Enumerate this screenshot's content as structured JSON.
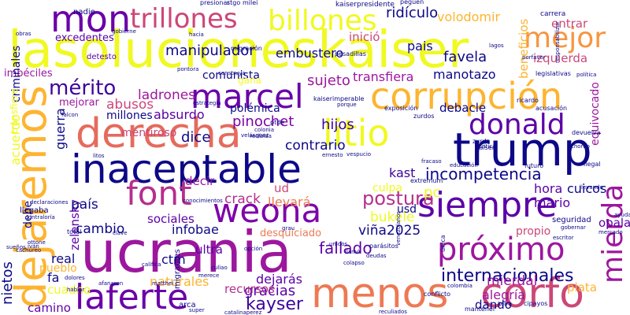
{
  "colors": {
    "background": "#ffffff",
    "palette": [
      "#0d0887",
      "#5c01a6",
      "#9c179e",
      "#cc4778",
      "#ed7953",
      "#fdb42f",
      "#f0f921"
    ]
  },
  "words": [
    {
      "text": "lasolucioneskaiser",
      "color": "#f0f921"
    },
    {
      "text": "ucrania",
      "color": "#9c179e"
    },
    {
      "text": "trump",
      "color": "#0d0887"
    },
    {
      "text": "inaceptable",
      "color": "#0d0887"
    },
    {
      "text": "derecha",
      "color": "#e56b5d"
    },
    {
      "text": "corrupción",
      "color": "#fdb42f"
    },
    {
      "text": "dejaremos",
      "color": "#fdb42f"
    },
    {
      "text": "menos",
      "color": "#ed7953"
    },
    {
      "text": "corfo",
      "color": "#cc4778"
    },
    {
      "text": "siempre",
      "color": "#5c01a6"
    },
    {
      "text": "weona",
      "color": "#7e03a8"
    },
    {
      "text": "marcel",
      "color": "#6a00a8"
    },
    {
      "text": "laferte",
      "color": "#6a00a8"
    },
    {
      "text": "próximo",
      "color": "#9c179e"
    },
    {
      "text": "billones",
      "color": "#f0f921"
    },
    {
      "text": "litio",
      "color": "#f0f921"
    },
    {
      "text": "mon",
      "color": "#6a00a8"
    },
    {
      "text": "font",
      "color": "#b52f8c"
    },
    {
      "text": "trillones",
      "color": "#cc4778"
    },
    {
      "text": "mejor",
      "color": "#f89540"
    },
    {
      "text": "mierda",
      "color": "#9c179e"
    },
    {
      "text": "donald",
      "color": "#5c01a6"
    },
    {
      "text": "internacionales",
      "color": "#0d0887"
    },
    {
      "text": "mérito",
      "color": "#3d049b"
    },
    {
      "text": "postura",
      "color": "#b52f8c"
    },
    {
      "text": "kayser",
      "color": "#3d049b"
    },
    {
      "text": "incompetencia",
      "color": "#0d0887"
    },
    {
      "text": "manipulador",
      "color": "#0d0887"
    },
    {
      "text": "pinochet",
      "color": "#7e03a8"
    },
    {
      "text": "gracias",
      "color": "#5c01a6"
    },
    {
      "text": "alegría",
      "color": "#9c179e"
    },
    {
      "text": "fallado",
      "color": "#5c01a6"
    },
    {
      "text": "ridículo",
      "color": "#0d0887"
    },
    {
      "text": "volodomir",
      "color": "#fdb42f"
    },
    {
      "text": "favela",
      "color": "#0d0887"
    },
    {
      "text": "sujeto",
      "color": "#9c179e"
    },
    {
      "text": "manotazo",
      "color": "#0d0887"
    },
    {
      "text": "transfiera",
      "color": "#9c179e"
    },
    {
      "text": "embustero",
      "color": "#0d0887"
    },
    {
      "text": "inició",
      "color": "#cc4778"
    },
    {
      "text": "pais",
      "color": "#0d0887"
    },
    {
      "text": "izquierda",
      "color": "#cc4778"
    },
    {
      "text": "beneficios",
      "color": "#fdb42f"
    },
    {
      "text": "entrar",
      "color": "#cc4778"
    },
    {
      "text": "excedentes",
      "color": "#5c01a6"
    },
    {
      "text": "ladrones",
      "color": "#9c179e"
    },
    {
      "text": "dice",
      "color": "#0d0887"
    },
    {
      "text": "abusos",
      "color": "#cc4778"
    },
    {
      "text": "absurdo",
      "color": "#5c01a6"
    },
    {
      "text": "millones",
      "color": "#0d0887"
    },
    {
      "text": "guerra",
      "color": "#0d0887"
    },
    {
      "text": "crack",
      "color": "#b52f8c"
    },
    {
      "text": "llevará",
      "color": "#ed7953"
    },
    {
      "text": "bukele",
      "color": "#f0f921"
    },
    {
      "text": "viña2025",
      "color": "#0d0887"
    },
    {
      "text": "mario",
      "color": "#5c01a6"
    },
    {
      "text": "hora",
      "color": "#5c01a6"
    },
    {
      "text": "hijos",
      "color": "#3d049b"
    },
    {
      "text": "contrario",
      "color": "#0d0887"
    },
    {
      "text": "debacle",
      "color": "#0d0887"
    },
    {
      "text": "zelensky",
      "color": "#5c01a6"
    },
    {
      "text": "mierdal",
      "color": "#9c179e"
    },
    {
      "text": "dando",
      "color": "#0d0887"
    },
    {
      "text": "plata",
      "color": "#fdb42f"
    },
    {
      "text": "nietos",
      "color": "#0d0887"
    },
    {
      "text": "cuadno",
      "color": "#f0f921"
    },
    {
      "text": "camino",
      "color": "#5c01a6"
    },
    {
      "text": "pueblo",
      "color": "#fdb42f"
    },
    {
      "text": "real",
      "color": "#0d0887"
    },
    {
      "text": "fa",
      "color": "#0d0887"
    },
    {
      "text": "naturales",
      "color": "#fdb42f"
    },
    {
      "text": "dejarás",
      "color": "#5c01a6"
    },
    {
      "text": "recursos",
      "color": "#b52f8c"
    },
    {
      "text": "ctm",
      "color": "#0d0887"
    },
    {
      "text": "ultra",
      "color": "#5c01a6"
    },
    {
      "text": "infobae",
      "color": "#0d0887"
    },
    {
      "text": "sociales",
      "color": "#5c01a6"
    },
    {
      "text": "cambio",
      "color": "#0d0887"
    },
    {
      "text": "país",
      "color": "#0d0887"
    },
    {
      "text": "debe",
      "color": "#0d0887"
    },
    {
      "text": "usd",
      "color": "#0d0887"
    },
    {
      "text": "desquiciado",
      "color": "#ed7953"
    },
    {
      "text": "pc",
      "color": "#f0f921"
    },
    {
      "text": "cuicos",
      "color": "#0d0887"
    },
    {
      "text": "opala",
      "color": "#5c01a6"
    },
    {
      "text": "propio",
      "color": "#cc4778"
    },
    {
      "text": "kast",
      "color": "#3d049b"
    },
    {
      "text": "culpa",
      "color": "#f0f921"
    },
    {
      "text": "ud",
      "color": "#cc4778"
    },
    {
      "text": "decir",
      "color": "#9c179e"
    },
    {
      "text": "mentiroso",
      "color": "#cc4778"
    },
    {
      "text": "acuerdo",
      "color": "#f0f921"
    },
    {
      "text": "polémica",
      "color": "#0d0887"
    },
    {
      "text": "comunista",
      "color": "#0d0887"
    },
    {
      "text": "gana",
      "color": "#f0f921"
    },
    {
      "text": "mejorar",
      "color": "#9c179e"
    },
    {
      "text": "imbéciles",
      "color": "#9c179e"
    },
    {
      "text": "criminales",
      "color": "#0d0887"
    },
    {
      "text": "transfiere",
      "color": "#f0f921"
    },
    {
      "text": "equivocado",
      "color": "#9c179e"
    },
    {
      "text": "detesto",
      "color": "#5c01a6"
    },
    {
      "text": "nadie",
      "color": "#0d0887"
    },
    {
      "text": "kaiserpresidente",
      "color": "#0d0887"
    },
    {
      "text": "carrera",
      "color": "#0d0887"
    },
    {
      "text": "migración",
      "color": "#0d0887"
    },
    {
      "text": "hacia",
      "color": "#0d0887"
    },
    {
      "text": "gobierne",
      "color": "#0d0887"
    },
    {
      "text": "presionar",
      "color": "#0d0887"
    },
    {
      "text": "stgo",
      "color": "#0d0887"
    },
    {
      "text": "milei",
      "color": "#0d0887"
    },
    {
      "text": "peguen",
      "color": "#0d0887"
    },
    {
      "text": "pesadillas",
      "color": "#0d0887"
    },
    {
      "text": "legislativas",
      "color": "#0d0887"
    },
    {
      "text": "kaiserimperable",
      "color": "#0d0887"
    },
    {
      "text": "acusación",
      "color": "#0d0887"
    },
    {
      "text": "política",
      "color": "#0d0887"
    },
    {
      "text": "estrategia",
      "color": "#0d0887"
    },
    {
      "text": "exposición",
      "color": "#0d0887"
    },
    {
      "text": "zurdos",
      "color": "#0d0887"
    },
    {
      "text": "recibida",
      "color": "#0d0887"
    },
    {
      "text": "colonia",
      "color": "#0d0887"
    },
    {
      "text": "ernesto",
      "color": "#0d0887"
    },
    {
      "text": "vespucio",
      "color": "#0d0887"
    },
    {
      "text": "fracaso",
      "color": "#0d0887"
    },
    {
      "text": "devuelva",
      "color": "#0d0887"
    },
    {
      "text": "ilegal",
      "color": "#0d0887"
    },
    {
      "text": "extremum",
      "color": "#0d0887"
    },
    {
      "text": "kaiser",
      "color": "#0d0887"
    },
    {
      "text": "zurda",
      "color": "#0d0887"
    },
    {
      "text": "futuro",
      "color": "#0d0887"
    },
    {
      "text": "educación",
      "color": "#0d0887"
    },
    {
      "text": "llevando",
      "color": "#0d0887"
    },
    {
      "text": "llegaba",
      "color": "#0d0887"
    },
    {
      "text": "contraloría",
      "color": "#0d0887"
    },
    {
      "text": "declaraciones",
      "color": "#0d0887"
    },
    {
      "text": "iván",
      "color": "#0d0887"
    },
    {
      "text": "clave",
      "color": "#0d0887"
    },
    {
      "text": "cachureo",
      "color": "#0d0887"
    },
    {
      "text": "total",
      "color": "#0d0887"
    },
    {
      "text": "sueños",
      "color": "#0d0887"
    },
    {
      "text": "ottone",
      "color": "#0d0887"
    },
    {
      "text": "califica",
      "color": "#0d0887"
    },
    {
      "text": "migrantes",
      "color": "#0d0887"
    },
    {
      "text": "culiao",
      "color": "#0d0887"
    },
    {
      "text": "merece",
      "color": "#0d0887"
    },
    {
      "text": "deudas",
      "color": "#0d0887"
    },
    {
      "text": "parásitos",
      "color": "#0d0887"
    },
    {
      "text": "llamó",
      "color": "#0d0887"
    },
    {
      "text": "colapso",
      "color": "#0d0887"
    },
    {
      "text": "unidos",
      "color": "#0d0887"
    },
    {
      "text": "conflicto",
      "color": "#0d0887"
    },
    {
      "text": "venezolanos",
      "color": "#0d0887"
    },
    {
      "text": "única",
      "color": "#0d0887"
    },
    {
      "text": "seguridad",
      "color": "#0d0887"
    },
    {
      "text": "gobernar",
      "color": "#0d0887"
    },
    {
      "text": "escritor",
      "color": "#0d0887"
    },
    {
      "text": "conocimientos",
      "color": "#0d0887"
    },
    {
      "text": "afanaron",
      "color": "#0d0887"
    },
    {
      "text": "matthei",
      "color": "#0d0887"
    },
    {
      "text": "hablar",
      "color": "#0d0887"
    },
    {
      "text": "arca",
      "color": "#0d0887"
    },
    {
      "text": "super",
      "color": "#0d0887"
    },
    {
      "text": "catalinaperez",
      "color": "#0d0887"
    },
    {
      "text": "reculiados",
      "color": "#0d0887"
    },
    {
      "text": "korra",
      "color": "#0d0887"
    },
    {
      "text": "cipayos",
      "color": "#0d0887"
    },
    {
      "text": "mantener",
      "color": "#0d0887"
    },
    {
      "text": "colombia",
      "color": "#0d0887"
    },
    {
      "text": "grau",
      "color": "#0d0887"
    },
    {
      "text": "opción",
      "color": "#0d0887"
    },
    {
      "text": "velásquez",
      "color": "#0d0887"
    },
    {
      "text": "litos",
      "color": "#0d0887"
    },
    {
      "text": "dolores",
      "color": "#0d0887"
    },
    {
      "text": "obras",
      "color": "#0d0887"
    },
    {
      "text": "ptde",
      "color": "#0d0887"
    },
    {
      "text": "falcon",
      "color": "#0d0887"
    },
    {
      "text": "porque",
      "color": "#0d0887"
    },
    {
      "text": "lagos",
      "color": "#0d0887"
    },
    {
      "text": "ricardo",
      "color": "#0d0887"
    },
    {
      "text": "responsabilizar",
      "color": "#0d0887"
    },
    {
      "text": "construya",
      "color": "#0d0887"
    },
    {
      "text": "pontora",
      "color": "#0d0887"
    },
    {
      "text": "porfavor",
      "color": "#0d0887"
    },
    {
      "text": "crítica",
      "color": "#0d0887"
    },
    {
      "text": "choreo",
      "color": "#0d0887"
    },
    {
      "text": "ayuda",
      "color": "#0d0887"
    },
    {
      "text": "mercado",
      "color": "#0d0887"
    }
  ]
}
